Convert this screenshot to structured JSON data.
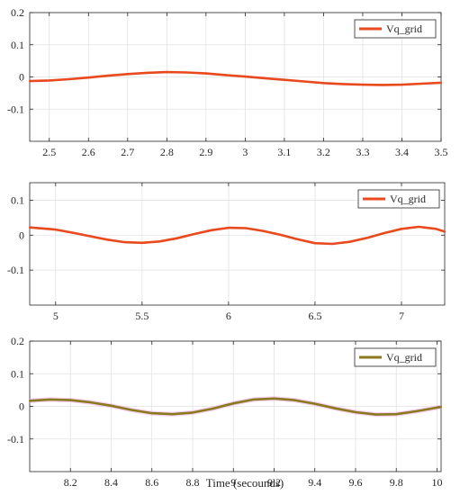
{
  "figure": {
    "xlabel": "Time (secounds)"
  },
  "chart_data": [
    {
      "type": "line",
      "xlim": [
        2.45,
        3.5
      ],
      "ylim": [
        -0.2,
        0.2
      ],
      "grid": true,
      "legend_position": "top-right",
      "x_ticks": [
        2.5,
        2.6,
        2.7,
        2.8,
        2.9,
        3,
        3.1,
        3.2,
        3.3,
        3.4,
        3.5
      ],
      "x_tick_labels": [
        "2.5",
        "2.6",
        "2.7",
        "2.8",
        "2.9",
        "3",
        "3.1",
        "3.2",
        "3.3",
        "3.4",
        "3.5"
      ],
      "y_ticks": [
        0.2,
        0.1,
        0,
        -0.1
      ],
      "y_tick_labels": [
        "0.2",
        "0.1",
        "0",
        "-0.1"
      ],
      "series": [
        {
          "name": "Vq_grid",
          "color": "#e8491d",
          "x": [
            2.45,
            2.5,
            2.55,
            2.6,
            2.65,
            2.7,
            2.75,
            2.8,
            2.85,
            2.9,
            2.95,
            3.0,
            3.05,
            3.1,
            3.15,
            3.2,
            3.25,
            3.3,
            3.35,
            3.4,
            3.45,
            3.5
          ],
          "y": [
            -0.013,
            -0.011,
            -0.007,
            -0.002,
            0.004,
            0.009,
            0.013,
            0.015,
            0.014,
            0.011,
            0.006,
            0.001,
            -0.004,
            -0.009,
            -0.014,
            -0.019,
            -0.022,
            -0.024,
            -0.025,
            -0.024,
            -0.021,
            -0.018
          ]
        }
      ]
    },
    {
      "type": "line",
      "xlim": [
        4.85,
        7.25
      ],
      "ylim": [
        -0.2,
        0.15
      ],
      "grid": true,
      "legend_position": "top-right",
      "x_ticks": [
        5,
        5.5,
        6,
        6.5,
        7
      ],
      "x_tick_labels": [
        "5",
        "5.5",
        "6",
        "6.5",
        "7"
      ],
      "y_ticks": [
        0.1,
        0,
        -0.1
      ],
      "y_tick_labels": [
        "0.1",
        "0",
        "-0.1"
      ],
      "series": [
        {
          "name": "Vq_grid",
          "color": "#e8491d",
          "x": [
            4.85,
            5.0,
            5.1,
            5.2,
            5.3,
            5.4,
            5.5,
            5.6,
            5.7,
            5.8,
            5.9,
            6.0,
            6.1,
            6.2,
            6.3,
            6.4,
            6.5,
            6.6,
            6.7,
            6.8,
            6.9,
            7.0,
            7.1,
            7.2,
            7.25
          ],
          "y": [
            0.022,
            0.016,
            0.007,
            -0.003,
            -0.013,
            -0.02,
            -0.022,
            -0.018,
            -0.009,
            0.003,
            0.014,
            0.021,
            0.02,
            0.012,
            0.001,
            -0.012,
            -0.023,
            -0.025,
            -0.019,
            -0.008,
            0.006,
            0.018,
            0.024,
            0.018,
            0.01
          ]
        }
      ]
    },
    {
      "type": "line",
      "xlim": [
        8.0,
        10.02
      ],
      "ylim": [
        -0.2,
        0.2
      ],
      "grid": true,
      "legend_position": "top-right",
      "x_ticks": [
        8.2,
        8.4,
        8.6,
        8.8,
        9,
        9.2,
        9.4,
        9.6,
        9.8,
        10
      ],
      "x_tick_labels": [
        "8.2",
        "8.4",
        "8.6",
        "8.8",
        "9",
        "9.2",
        "9.4",
        "9.6",
        "9.8",
        "10"
      ],
      "y_ticks": [
        0.2,
        0.1,
        0,
        -0.1
      ],
      "y_tick_labels": [
        "0.2",
        "0.1",
        "0",
        "-0.1"
      ],
      "series": [
        {
          "name": "Vq_grid",
          "color": "#8a7a1e",
          "x": [
            8.0,
            8.1,
            8.2,
            8.3,
            8.4,
            8.5,
            8.6,
            8.7,
            8.8,
            8.9,
            9.0,
            9.1,
            9.2,
            9.3,
            9.4,
            9.5,
            9.6,
            9.7,
            9.8,
            9.9,
            10.0,
            10.02
          ],
          "y": [
            0.017,
            0.021,
            0.019,
            0.012,
            0.002,
            -0.011,
            -0.021,
            -0.024,
            -0.019,
            -0.007,
            0.009,
            0.021,
            0.024,
            0.019,
            0.008,
            -0.006,
            -0.018,
            -0.025,
            -0.024,
            -0.015,
            -0.004,
            -0.002
          ]
        }
      ]
    }
  ]
}
